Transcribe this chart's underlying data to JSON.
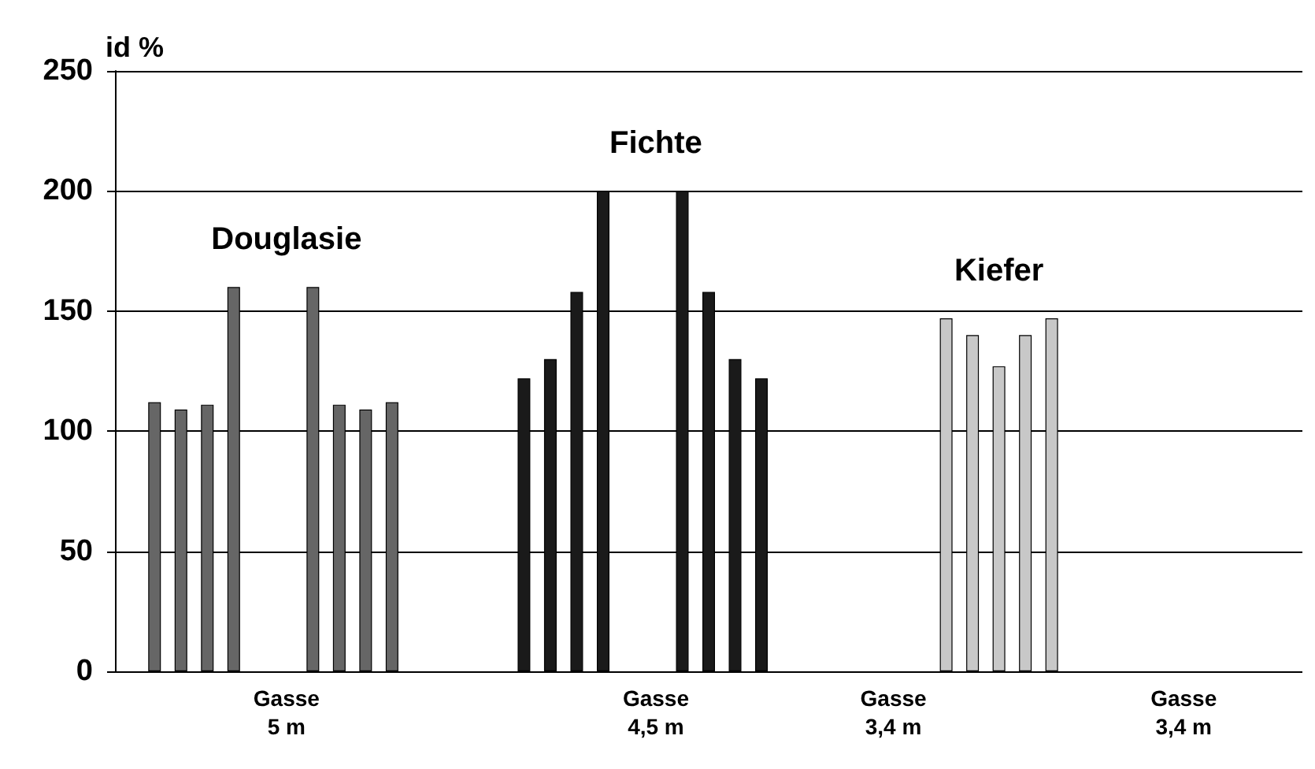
{
  "chart_data": {
    "type": "bar",
    "ylabel": "id %",
    "categories": [
      null,
      null,
      null,
      null,
      null,
      null,
      "Gasse\n5 m",
      null,
      null,
      null,
      null,
      null,
      null,
      null,
      null,
      null,
      null,
      null,
      null,
      null,
      "Gasse\n4,5 m",
      null,
      null,
      null,
      null,
      null,
      null,
      null,
      null,
      "Gasse\n3,4 m",
      null,
      null,
      null,
      null,
      null,
      null,
      null,
      null,
      null,
      null,
      "Gasse\n3,4 m",
      null,
      null,
      null,
      null
    ],
    "series": [
      {
        "name": "Douglasie",
        "color": "#666666",
        "values": [
          null,
          112,
          109,
          111,
          160,
          null,
          null,
          160,
          111,
          109,
          112,
          null,
          null,
          null,
          null,
          null,
          null,
          null,
          null,
          null,
          null,
          null,
          null,
          null,
          null,
          null,
          null,
          null,
          null,
          null,
          null,
          null,
          null,
          null,
          null,
          null,
          null,
          null,
          null,
          null,
          null,
          null,
          null,
          null,
          null
        ]
      },
      {
        "name": "Fichte",
        "color": "#1a1a1a",
        "values": [
          null,
          null,
          null,
          null,
          null,
          null,
          null,
          null,
          null,
          null,
          null,
          null,
          null,
          null,
          null,
          122,
          130,
          158,
          200,
          null,
          null,
          200,
          158,
          130,
          122,
          null,
          null,
          null,
          null,
          null,
          null,
          null,
          null,
          null,
          null,
          null,
          null,
          null,
          null,
          null,
          null,
          null,
          null,
          null,
          null
        ]
      },
      {
        "name": "Kiefer",
        "color": "#c8c8c8",
        "values": [
          null,
          null,
          null,
          null,
          null,
          null,
          null,
          null,
          null,
          null,
          null,
          null,
          null,
          null,
          null,
          null,
          null,
          null,
          null,
          null,
          null,
          null,
          null,
          null,
          null,
          null,
          null,
          null,
          null,
          null,
          null,
          147,
          140,
          127,
          140,
          147,
          null,
          null,
          null,
          null,
          null,
          null,
          null,
          null,
          null
        ]
      }
    ],
    "ylim": [
      0,
      250
    ],
    "yticks": [
      0,
      50,
      100,
      150,
      200,
      250
    ],
    "grid": "y",
    "legend": false
  }
}
